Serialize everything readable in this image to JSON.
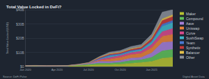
{
  "chart_data": {
    "type": "area",
    "title": "Total Value Locked in DeFi?",
    "ylabel": "Total Value Locked (USD)",
    "annotations": [
      "Source: DeFi Pulse",
      "Digital Asset Data"
    ],
    "stacked": true,
    "grid": true,
    "legend": "right",
    "categories": [
      "Jan 2020",
      null,
      null,
      "Apr 2020",
      null,
      null,
      "Jul 2020",
      null,
      null,
      "Oct 2020",
      null,
      null,
      "Jan 2021",
      null,
      null
    ],
    "ylim": [
      0,
      40
    ],
    "yticks": [
      {
        "value": 0,
        "label": "$0"
      },
      {
        "value": 10,
        "label": "$10B"
      },
      {
        "value": 20,
        "label": "$20B"
      },
      {
        "value": 30,
        "label": "$30B"
      },
      {
        "value": 40,
        "label": "$40B"
      }
    ],
    "series": [
      {
        "name": "Maker",
        "color": "#b5c132",
        "values": [
          0.4,
          0.5,
          0.3,
          0.35,
          0.45,
          0.5,
          0.8,
          1.4,
          1.3,
          1.6,
          2.2,
          2.8,
          3.5,
          5.8,
          6.5
        ]
      },
      {
        "name": "Compound",
        "color": "#5fbf5b",
        "values": [
          0.1,
          0.1,
          0.1,
          0.1,
          0.1,
          0.6,
          0.7,
          0.9,
          1.0,
          1.3,
          2.0,
          1.9,
          3.0,
          5.2,
          5.6
        ]
      },
      {
        "name": "Aave",
        "color": "#a57fd8",
        "values": [
          0,
          0,
          0,
          0,
          0,
          0.1,
          0.4,
          1.3,
          1.2,
          1.3,
          1.7,
          1.7,
          3.1,
          5.9,
          5.5
        ]
      },
      {
        "name": "Uniswap",
        "color": "#e8833a",
        "values": [
          0,
          0,
          0,
          0,
          0,
          0.05,
          0.1,
          0.5,
          1.6,
          2.2,
          2.4,
          2.8,
          3.6,
          4.3,
          5.0
        ]
      },
      {
        "name": "Curve",
        "color": "#d64b8c",
        "values": [
          0,
          0,
          0,
          0,
          0,
          0.05,
          0.2,
          0.9,
          1.2,
          1.3,
          1.4,
          1.6,
          2.4,
          3.3,
          4.2
        ]
      },
      {
        "name": "SushiSwap",
        "color": "#3fb6c9",
        "values": [
          0,
          0,
          0,
          0,
          0,
          0,
          0,
          0,
          0.9,
          0.5,
          0.7,
          1.0,
          1.6,
          3.8,
          4.0
        ]
      },
      {
        "name": "Yearn",
        "color": "#4a78d1",
        "values": [
          0,
          0,
          0,
          0,
          0,
          0,
          0.05,
          0.6,
          0.8,
          0.7,
          0.8,
          0.5,
          0.7,
          1.4,
          1.6
        ]
      },
      {
        "name": "Synthetix",
        "color": "#c43a3a",
        "values": [
          0.1,
          0.1,
          0.1,
          0.1,
          0.1,
          0.15,
          0.3,
          0.5,
          0.7,
          0.7,
          0.8,
          1.1,
          1.7,
          2.6,
          2.7
        ]
      },
      {
        "name": "Balancer",
        "color": "#e3c04a",
        "values": [
          0,
          0,
          0,
          0,
          0,
          0,
          0.1,
          0.3,
          0.35,
          0.4,
          0.5,
          0.4,
          0.6,
          1.2,
          1.4
        ]
      },
      {
        "name": "Other",
        "color": "#8a8f99",
        "values": [
          0.1,
          0.1,
          0.1,
          0.1,
          0.1,
          0.1,
          0.2,
          0.5,
          1.1,
          1.2,
          1.5,
          1.7,
          2.6,
          4.8,
          3.5
        ]
      }
    ]
  }
}
